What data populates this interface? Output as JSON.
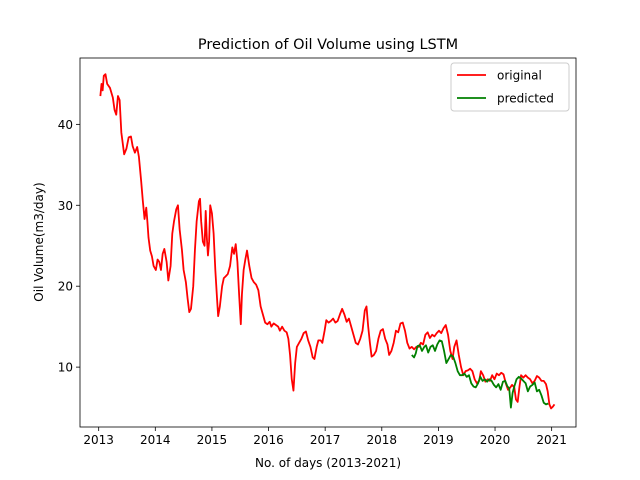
{
  "chart_data": {
    "type": "line",
    "title": "Prediction of Oil Volume using LSTM",
    "xlabel": "No. of days (2013-2021)",
    "ylabel": "Oil Volume(m3/day)",
    "x_ticks": [
      "2013",
      "2014",
      "2015",
      "2016",
      "2017",
      "2018",
      "2019",
      "2020",
      "2021"
    ],
    "y_ticks": [
      10,
      20,
      30,
      40
    ],
    "xlim": [
      2012.67,
      2021.43
    ],
    "ylim": [
      2.6,
      48.2
    ],
    "grid": false,
    "legend_position": "top-right",
    "series": [
      {
        "name": "original",
        "color": "#ff0000",
        "points": [
          [
            2013.03,
            43.5
          ],
          [
            2013.05,
            45.0
          ],
          [
            2013.07,
            44.2
          ],
          [
            2013.09,
            46.0
          ],
          [
            2013.12,
            46.2
          ],
          [
            2013.15,
            45.0
          ],
          [
            2013.2,
            44.5
          ],
          [
            2013.25,
            43.3
          ],
          [
            2013.28,
            41.8
          ],
          [
            2013.31,
            41.2
          ],
          [
            2013.34,
            43.5
          ],
          [
            2013.37,
            43.0
          ],
          [
            2013.4,
            39.0
          ],
          [
            2013.45,
            36.3
          ],
          [
            2013.49,
            37.0
          ],
          [
            2013.53,
            38.4
          ],
          [
            2013.57,
            38.5
          ],
          [
            2013.6,
            37.3
          ],
          [
            2013.64,
            36.5
          ],
          [
            2013.68,
            37.2
          ],
          [
            2013.71,
            36.0
          ],
          [
            2013.75,
            33.0
          ],
          [
            2013.78,
            30.5
          ],
          [
            2013.81,
            28.3
          ],
          [
            2013.84,
            29.7
          ],
          [
            2013.86,
            28.0
          ],
          [
            2013.88,
            26.0
          ],
          [
            2013.91,
            24.4
          ],
          [
            2013.94,
            23.7
          ],
          [
            2013.97,
            22.5
          ],
          [
            2014.01,
            22.0
          ],
          [
            2014.04,
            23.3
          ],
          [
            2014.07,
            23.0
          ],
          [
            2014.1,
            22.0
          ],
          [
            2014.13,
            24.0
          ],
          [
            2014.16,
            24.6
          ],
          [
            2014.2,
            23.0
          ],
          [
            2014.23,
            20.7
          ],
          [
            2014.27,
            22.5
          ],
          [
            2014.3,
            26.5
          ],
          [
            2014.33,
            28.0
          ],
          [
            2014.37,
            29.5
          ],
          [
            2014.4,
            30.0
          ],
          [
            2014.43,
            27.0
          ],
          [
            2014.47,
            24.5
          ],
          [
            2014.5,
            22.0
          ],
          [
            2014.54,
            20.5
          ],
          [
            2014.57,
            18.5
          ],
          [
            2014.6,
            16.8
          ],
          [
            2014.63,
            17.2
          ],
          [
            2014.67,
            20.0
          ],
          [
            2014.7,
            24.5
          ],
          [
            2014.73,
            28.0
          ],
          [
            2014.77,
            30.5
          ],
          [
            2014.79,
            30.8
          ],
          [
            2014.81,
            28.0
          ],
          [
            2014.84,
            25.5
          ],
          [
            2014.87,
            25.0
          ],
          [
            2014.89,
            29.3
          ],
          [
            2014.91,
            26.0
          ],
          [
            2014.93,
            23.8
          ],
          [
            2014.95,
            25.5
          ],
          [
            2014.97,
            30.0
          ],
          [
            2015.0,
            29.0
          ],
          [
            2015.03,
            26.5
          ],
          [
            2015.06,
            22.0
          ],
          [
            2015.09,
            18.5
          ],
          [
            2015.11,
            16.3
          ],
          [
            2015.14,
            17.5
          ],
          [
            2015.18,
            20.0
          ],
          [
            2015.21,
            21.0
          ],
          [
            2015.24,
            21.2
          ],
          [
            2015.28,
            21.5
          ],
          [
            2015.32,
            22.5
          ],
          [
            2015.36,
            24.8
          ],
          [
            2015.39,
            24.0
          ],
          [
            2015.42,
            25.2
          ],
          [
            2015.45,
            23.0
          ],
          [
            2015.48,
            19.0
          ],
          [
            2015.51,
            15.3
          ],
          [
            2015.53,
            19.0
          ],
          [
            2015.56,
            22.0
          ],
          [
            2015.59,
            23.3
          ],
          [
            2015.62,
            24.4
          ],
          [
            2015.66,
            22.5
          ],
          [
            2015.7,
            21.0
          ],
          [
            2015.74,
            20.5
          ],
          [
            2015.78,
            20.2
          ],
          [
            2015.82,
            19.5
          ],
          [
            2015.86,
            17.5
          ],
          [
            2015.9,
            16.5
          ],
          [
            2015.94,
            15.5
          ],
          [
            2015.98,
            15.3
          ],
          [
            2016.02,
            15.6
          ],
          [
            2016.05,
            15.0
          ],
          [
            2016.09,
            15.4
          ],
          [
            2016.13,
            15.2
          ],
          [
            2016.17,
            15.0
          ],
          [
            2016.2,
            14.5
          ],
          [
            2016.24,
            15.0
          ],
          [
            2016.28,
            14.5
          ],
          [
            2016.32,
            14.3
          ],
          [
            2016.35,
            13.5
          ],
          [
            2016.38,
            11.5
          ],
          [
            2016.41,
            8.5
          ],
          [
            2016.44,
            7.1
          ],
          [
            2016.47,
            10.5
          ],
          [
            2016.5,
            12.5
          ],
          [
            2016.54,
            13.0
          ],
          [
            2016.58,
            13.5
          ],
          [
            2016.62,
            14.2
          ],
          [
            2016.66,
            14.4
          ],
          [
            2016.7,
            13.3
          ],
          [
            2016.74,
            12.5
          ],
          [
            2016.78,
            11.2
          ],
          [
            2016.81,
            11.0
          ],
          [
            2016.85,
            12.5
          ],
          [
            2016.88,
            13.3
          ],
          [
            2016.92,
            13.3
          ],
          [
            2016.95,
            13.0
          ],
          [
            2016.99,
            14.5
          ],
          [
            2017.02,
            15.8
          ],
          [
            2017.06,
            15.5
          ],
          [
            2017.1,
            15.7
          ],
          [
            2017.14,
            16.0
          ],
          [
            2017.18,
            15.5
          ],
          [
            2017.22,
            15.7
          ],
          [
            2017.26,
            16.5
          ],
          [
            2017.3,
            17.2
          ],
          [
            2017.34,
            16.5
          ],
          [
            2017.38,
            15.6
          ],
          [
            2017.42,
            16.0
          ],
          [
            2017.46,
            15.0
          ],
          [
            2017.5,
            14.0
          ],
          [
            2017.54,
            13.0
          ],
          [
            2017.58,
            12.8
          ],
          [
            2017.62,
            13.5
          ],
          [
            2017.66,
            14.5
          ],
          [
            2017.7,
            17.0
          ],
          [
            2017.73,
            17.5
          ],
          [
            2017.76,
            15.0
          ],
          [
            2017.79,
            13.0
          ],
          [
            2017.82,
            11.3
          ],
          [
            2017.86,
            11.5
          ],
          [
            2017.9,
            12.0
          ],
          [
            2017.94,
            13.5
          ],
          [
            2017.98,
            14.5
          ],
          [
            2018.02,
            14.7
          ],
          [
            2018.06,
            13.5
          ],
          [
            2018.1,
            12.8
          ],
          [
            2018.13,
            11.5
          ],
          [
            2018.17,
            12.0
          ],
          [
            2018.21,
            13.0
          ],
          [
            2018.25,
            14.5
          ],
          [
            2018.29,
            14.3
          ],
          [
            2018.33,
            15.4
          ],
          [
            2018.37,
            15.5
          ],
          [
            2018.41,
            14.5
          ],
          [
            2018.45,
            13.0
          ],
          [
            2018.49,
            12.3
          ],
          [
            2018.53,
            12.5
          ],
          [
            2018.57,
            12.2
          ],
          [
            2018.61,
            12.5
          ],
          [
            2018.65,
            12.5
          ],
          [
            2018.69,
            13.0
          ],
          [
            2018.73,
            12.8
          ],
          [
            2018.77,
            14.0
          ],
          [
            2018.81,
            14.3
          ],
          [
            2018.85,
            13.6
          ],
          [
            2018.89,
            14.0
          ],
          [
            2018.93,
            13.8
          ],
          [
            2018.97,
            14.2
          ],
          [
            2019.01,
            14.5
          ],
          [
            2019.05,
            14.2
          ],
          [
            2019.09,
            14.8
          ],
          [
            2019.13,
            15.2
          ],
          [
            2019.17,
            14.0
          ],
          [
            2019.21,
            12.0
          ],
          [
            2019.25,
            11.0
          ],
          [
            2019.28,
            12.5
          ],
          [
            2019.32,
            13.3
          ],
          [
            2019.36,
            11.5
          ],
          [
            2019.4,
            10.0
          ],
          [
            2019.44,
            9.0
          ],
          [
            2019.48,
            9.5
          ],
          [
            2019.52,
            9.6
          ],
          [
            2019.56,
            9.8
          ],
          [
            2019.6,
            9.5
          ],
          [
            2019.64,
            8.5
          ],
          [
            2019.68,
            8.0
          ],
          [
            2019.72,
            8.3
          ],
          [
            2019.75,
            9.5
          ],
          [
            2019.79,
            9.0
          ],
          [
            2019.83,
            8.2
          ],
          [
            2019.87,
            8.5
          ],
          [
            2019.91,
            8.3
          ],
          [
            2019.95,
            9.0
          ],
          [
            2019.99,
            8.5
          ],
          [
            2020.03,
            9.2
          ],
          [
            2020.07,
            9.0
          ],
          [
            2020.11,
            9.3
          ],
          [
            2020.15,
            9.1
          ],
          [
            2020.19,
            8.0
          ],
          [
            2020.23,
            7.2
          ],
          [
            2020.27,
            7.5
          ],
          [
            2020.3,
            7.8
          ],
          [
            2020.34,
            7.5
          ],
          [
            2020.37,
            6.0
          ],
          [
            2020.4,
            5.7
          ],
          [
            2020.43,
            7.5
          ],
          [
            2020.46,
            9.0
          ],
          [
            2020.5,
            8.7
          ],
          [
            2020.54,
            9.0
          ],
          [
            2020.58,
            8.7
          ],
          [
            2020.62,
            8.5
          ],
          [
            2020.66,
            8.0
          ],
          [
            2020.7,
            8.3
          ],
          [
            2020.74,
            8.9
          ],
          [
            2020.78,
            8.7
          ],
          [
            2020.82,
            8.3
          ],
          [
            2020.86,
            8.3
          ],
          [
            2020.9,
            7.9
          ],
          [
            2020.93,
            7.0
          ],
          [
            2020.96,
            5.4
          ],
          [
            2020.99,
            4.9
          ],
          [
            2021.02,
            5.1
          ],
          [
            2021.05,
            5.4
          ]
        ]
      },
      {
        "name": "predicted",
        "color": "#008000",
        "points": [
          [
            2018.53,
            11.5
          ],
          [
            2018.57,
            11.2
          ],
          [
            2018.6,
            11.7
          ],
          [
            2018.63,
            12.6
          ],
          [
            2018.67,
            12.7
          ],
          [
            2018.71,
            12.0
          ],
          [
            2018.75,
            12.5
          ],
          [
            2018.78,
            12.7
          ],
          [
            2018.82,
            11.8
          ],
          [
            2018.86,
            12.5
          ],
          [
            2018.9,
            12.7
          ],
          [
            2018.94,
            12.0
          ],
          [
            2018.98,
            12.8
          ],
          [
            2019.02,
            13.3
          ],
          [
            2019.06,
            13.2
          ],
          [
            2019.1,
            12.0
          ],
          [
            2019.14,
            10.5
          ],
          [
            2019.18,
            11.0
          ],
          [
            2019.22,
            11.5
          ],
          [
            2019.26,
            11.3
          ],
          [
            2019.3,
            10.5
          ],
          [
            2019.34,
            9.5
          ],
          [
            2019.38,
            9.0
          ],
          [
            2019.42,
            9.0
          ],
          [
            2019.46,
            9.2
          ],
          [
            2019.5,
            8.8
          ],
          [
            2019.54,
            9.0
          ],
          [
            2019.58,
            8.0
          ],
          [
            2019.62,
            7.6
          ],
          [
            2019.66,
            7.5
          ],
          [
            2019.7,
            8.0
          ],
          [
            2019.74,
            8.8
          ],
          [
            2019.78,
            8.3
          ],
          [
            2019.82,
            8.5
          ],
          [
            2019.86,
            8.2
          ],
          [
            2019.9,
            8.5
          ],
          [
            2019.94,
            8.3
          ],
          [
            2019.98,
            7.8
          ],
          [
            2020.02,
            7.5
          ],
          [
            2020.06,
            7.9
          ],
          [
            2020.1,
            7.2
          ],
          [
            2020.14,
            8.2
          ],
          [
            2020.18,
            8.3
          ],
          [
            2020.22,
            7.6
          ],
          [
            2020.25,
            7.4
          ],
          [
            2020.28,
            5.0
          ],
          [
            2020.31,
            6.8
          ],
          [
            2020.34,
            7.6
          ],
          [
            2020.38,
            8.5
          ],
          [
            2020.42,
            8.8
          ],
          [
            2020.46,
            8.6
          ],
          [
            2020.5,
            8.3
          ],
          [
            2020.54,
            8.0
          ],
          [
            2020.58,
            7.0
          ],
          [
            2020.62,
            7.6
          ],
          [
            2020.66,
            7.8
          ],
          [
            2020.7,
            8.1
          ],
          [
            2020.74,
            7.0
          ],
          [
            2020.78,
            7.2
          ],
          [
            2020.82,
            6.5
          ],
          [
            2020.86,
            5.6
          ],
          [
            2020.9,
            5.4
          ],
          [
            2020.94,
            5.5
          ]
        ]
      }
    ]
  }
}
